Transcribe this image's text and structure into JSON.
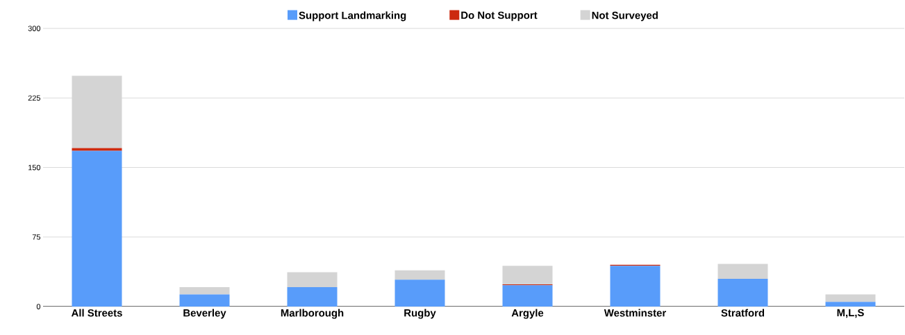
{
  "chart_data": {
    "type": "bar",
    "stacked": true,
    "categories": [
      "All Streets",
      "Beverley",
      "Marlborough",
      "Rugby",
      "Argyle",
      "Westminster",
      "Stratford",
      "M,L,S"
    ],
    "series": [
      {
        "name": "Support Landmarking",
        "color": "#589cfa",
        "values": [
          168,
          13,
          21,
          29,
          23,
          44,
          30,
          5
        ]
      },
      {
        "name": "Do Not Support",
        "color": "#cc2a10",
        "values": [
          3,
          0,
          0,
          0,
          1,
          1,
          0,
          0
        ]
      },
      {
        "name": "Not Surveyed",
        "color": "#d4d4d4",
        "values": [
          78,
          8,
          16,
          10,
          20,
          0,
          16,
          8
        ]
      }
    ],
    "ylim": [
      0,
      300
    ],
    "yticks": [
      0,
      75,
      150,
      225,
      300
    ],
    "grid": "y",
    "legend": "top"
  }
}
